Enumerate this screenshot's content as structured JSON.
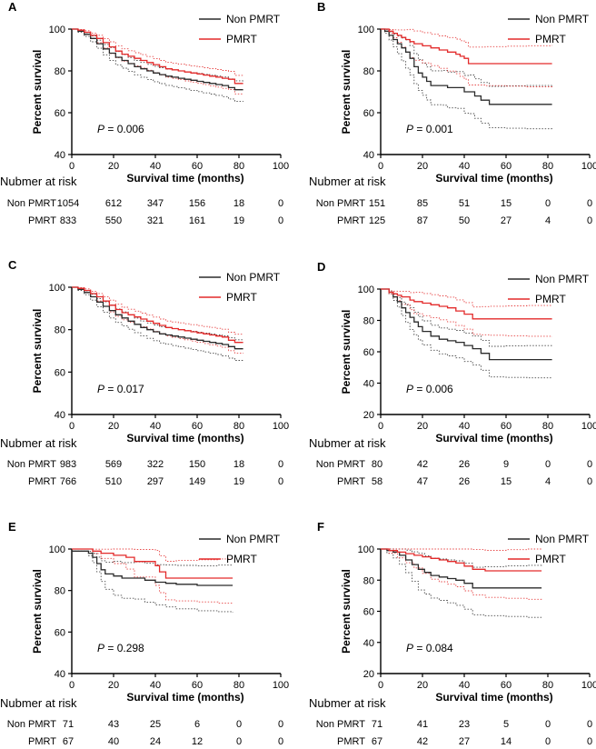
{
  "figure": {
    "colors": {
      "non_pmrt": "#2b2b2b",
      "pmrt": "#e32a2a",
      "axis": "#000000"
    }
  },
  "chart_data": [
    {
      "panel": "A",
      "type": "line",
      "ylabel": "Percent survival",
      "xlabel": "Survival time (months)",
      "xlim": [
        0,
        100
      ],
      "ylim": [
        40,
        100
      ],
      "xticks": [
        0,
        20,
        40,
        60,
        80,
        100
      ],
      "yticks": [
        40,
        60,
        80,
        100
      ],
      "p_prefix": "P",
      "p_value": " = 0.006",
      "legend": [
        "Non PMRT",
        "PMRT"
      ],
      "series": [
        {
          "name": "Non PMRT",
          "x": [
            0,
            3,
            6,
            9,
            12,
            15,
            18,
            21,
            24,
            27,
            30,
            33,
            36,
            39,
            42,
            45,
            48,
            51,
            54,
            57,
            60,
            63,
            66,
            69,
            72,
            75,
            78,
            82
          ],
          "y": [
            100,
            99,
            97.5,
            95.5,
            93,
            90.5,
            88.5,
            86.5,
            85,
            83.5,
            82,
            81,
            80,
            79,
            78.2,
            77.5,
            77,
            76.5,
            76,
            75.5,
            75,
            74.5,
            74,
            73.5,
            73,
            72,
            71,
            71
          ]
        },
        {
          "name": "PMRT",
          "x": [
            0,
            3,
            6,
            9,
            12,
            15,
            18,
            21,
            24,
            27,
            30,
            33,
            36,
            39,
            42,
            45,
            48,
            51,
            54,
            57,
            60,
            63,
            66,
            69,
            72,
            75,
            78,
            82
          ],
          "y": [
            100,
            99.5,
            98.5,
            97,
            95.5,
            93.5,
            91.5,
            89.5,
            88,
            87,
            86,
            85,
            84,
            83,
            82,
            81,
            80.5,
            80,
            79.5,
            79,
            78.5,
            78,
            77.5,
            77,
            76.5,
            76,
            74,
            74
          ]
        }
      ],
      "risk_table": {
        "title": "Nubmer at risk",
        "rows": [
          {
            "label": "Non PMRT",
            "values": [
              "1054",
              "612",
              "347",
              "156",
              "18",
              "0"
            ]
          },
          {
            "label": "PMRT",
            "values": [
              "833",
              "550",
              "321",
              "161",
              "19",
              "0"
            ]
          }
        ]
      }
    },
    {
      "panel": "B",
      "type": "line",
      "ylabel": "Percent survival",
      "xlabel": "Survival time (months)",
      "xlim": [
        0,
        100
      ],
      "ylim": [
        40,
        100
      ],
      "xticks": [
        0,
        20,
        40,
        60,
        80,
        100
      ],
      "yticks": [
        40,
        60,
        80,
        100
      ],
      "p_prefix": "P",
      "p_value": " = 0.001",
      "legend": [
        "Non PMRT",
        "PMRT"
      ],
      "series": [
        {
          "name": "Non PMRT",
          "x": [
            0,
            2,
            4,
            6,
            8,
            10,
            12,
            14,
            16,
            18,
            20,
            22,
            24,
            30,
            32,
            36,
            40,
            42,
            45,
            48,
            52,
            60,
            70,
            82
          ],
          "y": [
            100,
            99,
            97,
            95,
            93,
            91,
            89,
            86,
            82,
            79,
            77,
            75,
            73,
            73,
            72,
            72,
            70,
            70,
            68,
            66,
            64,
            64,
            64,
            64
          ]
        },
        {
          "name": "PMRT",
          "x": [
            0,
            4,
            6,
            8,
            10,
            12,
            14,
            16,
            20,
            24,
            28,
            32,
            36,
            38,
            40,
            42,
            50,
            60,
            70,
            82
          ],
          "y": [
            100,
            99,
            98,
            97,
            96,
            95,
            94,
            93,
            92,
            91,
            90,
            89,
            88,
            87,
            86,
            83.5,
            83.5,
            83.5,
            83.5,
            83.5
          ]
        }
      ],
      "risk_table": {
        "title": "Nubmer at risk",
        "rows": [
          {
            "label": "Non PMRT",
            "values": [
              "151",
              "85",
              "51",
              "15",
              "0",
              "0"
            ]
          },
          {
            "label": "PMRT",
            "values": [
              "125",
              "87",
              "50",
              "27",
              "4",
              "0"
            ]
          }
        ]
      }
    },
    {
      "panel": "C",
      "type": "line",
      "ylabel": "Percent survival",
      "xlabel": "Survival time (months)",
      "xlim": [
        0,
        100
      ],
      "ylim": [
        40,
        100
      ],
      "xticks": [
        0,
        20,
        40,
        60,
        80,
        100
      ],
      "yticks": [
        40,
        60,
        80,
        100
      ],
      "p_prefix": "P",
      "p_value": " = 0.017",
      "legend": [
        "Non PMRT",
        "PMRT"
      ],
      "series": [
        {
          "name": "Non PMRT",
          "x": [
            0,
            3,
            6,
            9,
            12,
            15,
            18,
            21,
            24,
            27,
            30,
            33,
            36,
            39,
            42,
            45,
            48,
            51,
            54,
            57,
            60,
            63,
            66,
            69,
            72,
            75,
            78,
            82
          ],
          "y": [
            100,
            99,
            97.5,
            95.5,
            93,
            91,
            89,
            87,
            85.5,
            84,
            82.5,
            81,
            80,
            79,
            78,
            77.5,
            77,
            76.5,
            76,
            75.5,
            75,
            74.5,
            74,
            73.5,
            73,
            72,
            71,
            71
          ]
        },
        {
          "name": "PMRT",
          "x": [
            0,
            3,
            6,
            9,
            12,
            15,
            18,
            21,
            24,
            27,
            30,
            33,
            36,
            39,
            42,
            45,
            48,
            51,
            54,
            57,
            60,
            63,
            66,
            69,
            72,
            75,
            78,
            82
          ],
          "y": [
            100,
            99.5,
            98.5,
            97,
            95.5,
            93.5,
            91.5,
            89.5,
            88,
            87,
            86,
            85,
            84,
            83,
            82,
            81,
            80.5,
            80,
            79.5,
            79,
            78.5,
            78,
            77.5,
            77,
            76.5,
            75,
            74,
            74
          ]
        }
      ],
      "risk_table": {
        "title": "Nubmer at risk",
        "rows": [
          {
            "label": "Non PMRT",
            "values": [
              "983",
              "569",
              "322",
              "150",
              "18",
              "0"
            ]
          },
          {
            "label": "PMRT",
            "values": [
              "766",
              "510",
              "297",
              "149",
              "19",
              "0"
            ]
          }
        ]
      }
    },
    {
      "panel": "D",
      "type": "line",
      "ylabel": "Percent survival",
      "xlabel": "Survival time (months)",
      "xlim": [
        0,
        100
      ],
      "ylim": [
        20,
        100
      ],
      "xticks": [
        0,
        20,
        40,
        60,
        80,
        100
      ],
      "yticks": [
        20,
        40,
        60,
        80,
        100
      ],
      "p_prefix": "P",
      "p_value": " = 0.006",
      "legend": [
        "Non PMRT",
        "PMRT"
      ],
      "series": [
        {
          "name": "Non PMRT",
          "x": [
            0,
            4,
            6,
            8,
            10,
            12,
            14,
            16,
            18,
            20,
            24,
            28,
            32,
            36,
            40,
            44,
            48,
            52,
            60,
            70,
            82
          ],
          "y": [
            100,
            98,
            95,
            92,
            88,
            85,
            82,
            79,
            76,
            73,
            70,
            68,
            67,
            66,
            64,
            62,
            59,
            55,
            55,
            55,
            55
          ]
        },
        {
          "name": "PMRT",
          "x": [
            0,
            4,
            6,
            8,
            10,
            14,
            16,
            20,
            24,
            28,
            32,
            36,
            40,
            44,
            48,
            52,
            60,
            70,
            82
          ],
          "y": [
            100,
            98,
            97,
            96,
            95,
            93,
            92,
            91,
            90,
            89,
            88,
            86,
            84,
            81,
            81,
            81,
            81,
            81,
            81
          ]
        }
      ],
      "risk_table": {
        "title": "Nubmer at risk",
        "rows": [
          {
            "label": "Non PMRT",
            "values": [
              "80",
              "42",
              "26",
              "9",
              "0",
              "0"
            ]
          },
          {
            "label": "PMRT",
            "values": [
              "58",
              "47",
              "26",
              "15",
              "4",
              "0"
            ]
          }
        ]
      }
    },
    {
      "panel": "E",
      "type": "line",
      "ylabel": "Percent survival",
      "xlabel": "Survival time (months)",
      "xlim": [
        0,
        100
      ],
      "ylim": [
        40,
        100
      ],
      "xticks": [
        0,
        20,
        40,
        60,
        80,
        100
      ],
      "yticks": [
        40,
        60,
        80,
        100
      ],
      "p_prefix": "P",
      "p_value": " = 0.298",
      "legend": [
        "Non PMRT",
        "PMRT"
      ],
      "series": [
        {
          "name": "Non PMRT",
          "x": [
            0,
            8,
            10,
            12,
            14,
            16,
            20,
            24,
            30,
            35,
            40,
            45,
            50,
            60,
            70,
            77
          ],
          "y": [
            99,
            98,
            96,
            93,
            90,
            88,
            87,
            86,
            86,
            85,
            84,
            83.5,
            83,
            82.5,
            82.5,
            82.5
          ]
        },
        {
          "name": "PMRT",
          "x": [
            0,
            10,
            14,
            20,
            26,
            30,
            40,
            42,
            45,
            50,
            60,
            70,
            77
          ],
          "y": [
            100,
            99,
            98,
            97,
            96,
            94,
            92,
            89,
            86,
            86,
            86,
            86,
            86
          ]
        }
      ],
      "risk_table": {
        "title": "Nubmer at risk",
        "rows": [
          {
            "label": "Non PMRT",
            "values": [
              "71",
              "43",
              "25",
              "6",
              "0",
              "0"
            ]
          },
          {
            "label": "PMRT",
            "values": [
              "67",
              "40",
              "24",
              "12",
              "0",
              "0"
            ]
          }
        ]
      }
    },
    {
      "panel": "F",
      "type": "line",
      "ylabel": "Percent survival",
      "xlabel": "Survival time (months)",
      "xlim": [
        0,
        100
      ],
      "ylim": [
        20,
        100
      ],
      "xticks": [
        0,
        20,
        40,
        60,
        80,
        100
      ],
      "yticks": [
        20,
        40,
        60,
        80,
        100
      ],
      "p_prefix": "P",
      "p_value": " = 0.084",
      "legend": [
        "Non PMRT",
        "PMRT"
      ],
      "series": [
        {
          "name": "Non PMRT",
          "x": [
            0,
            3,
            6,
            9,
            12,
            15,
            18,
            21,
            24,
            28,
            32,
            36,
            40,
            44,
            50,
            60,
            70,
            77
          ],
          "y": [
            100,
            99,
            98,
            96,
            93,
            90,
            87,
            85,
            83,
            82,
            81,
            80,
            78,
            75,
            75,
            75,
            75,
            75
          ]
        },
        {
          "name": "PMRT",
          "x": [
            0,
            4,
            8,
            12,
            16,
            20,
            24,
            28,
            32,
            36,
            40,
            44,
            50,
            60,
            70,
            77
          ],
          "y": [
            100,
            99,
            98,
            97,
            96,
            95,
            94,
            93,
            92,
            91,
            89,
            87,
            86,
            86,
            86,
            86
          ]
        }
      ],
      "risk_table": {
        "title": "Nubmer at risk",
        "rows": [
          {
            "label": "Non PMRT",
            "values": [
              "71",
              "41",
              "23",
              "5",
              "0",
              "0"
            ]
          },
          {
            "label": "PMRT",
            "values": [
              "67",
              "42",
              "27",
              "14",
              "0",
              "0"
            ]
          }
        ]
      }
    }
  ]
}
